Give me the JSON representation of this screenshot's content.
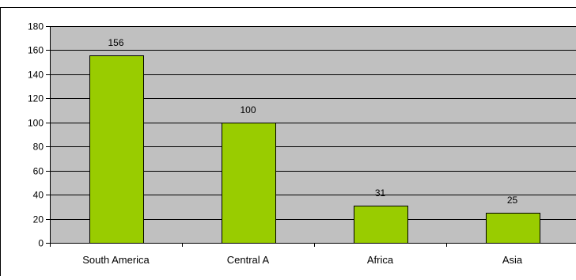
{
  "chart_data": {
    "type": "bar",
    "categories": [
      "South America",
      "Central A",
      "Africa",
      "Asia"
    ],
    "values": [
      156,
      100,
      31,
      25
    ],
    "title": "",
    "xlabel": "",
    "ylabel": "",
    "ylim": [
      0,
      180
    ],
    "yticks": [
      "0",
      "20",
      "40",
      "60",
      "80",
      "100",
      "120",
      "140",
      "160",
      "180"
    ],
    "data_labels": [
      "156",
      "100",
      "31",
      "25"
    ],
    "grid": true,
    "legend": "none"
  },
  "colors": {
    "plot_background": "#c0c0c0",
    "bar_fill": "#99cc00",
    "bar_stroke": "#000000",
    "gridline": "#000000",
    "axis": "#000000"
  }
}
